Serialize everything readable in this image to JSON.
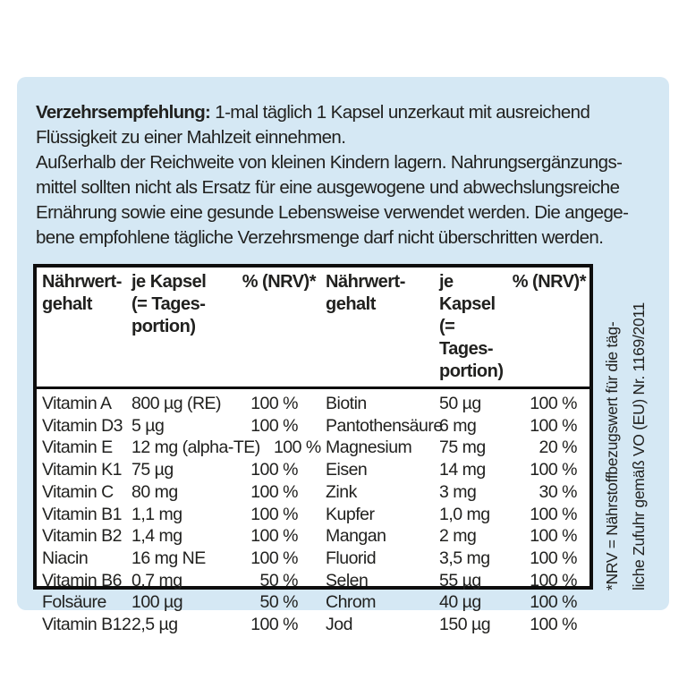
{
  "label": {
    "background_color": "#d5e8f4",
    "text_color": "#21211f",
    "border_color": "#0d0d0d"
  },
  "recommendation": {
    "heading": "Verzehrsempfehlung:",
    "line1_rest": " 1-mal täglich 1 Kapsel unzerkaut mit ausreichend",
    "lines": [
      "Flüssigkeit zu einer Mahlzeit einnehmen.",
      "Außerhalb der Reichweite von kleinen Kindern lagern. Nahrungsergänzungs-",
      "mittel sollten nicht als Ersatz für eine ausgewogene und abwechslungsreiche",
      "Ernährung sowie eine gesunde Lebensweise verwendet werden. Die angege-",
      "bene empfohlene tägliche Verzehrsmenge darf nicht überschritten werden."
    ]
  },
  "table": {
    "headers": {
      "name": "Nährwert-\ngehalt",
      "amount": "je Kapsel\n(= Tages-\nportion)",
      "nrv": "% (NRV)*"
    },
    "left_rows": [
      {
        "name": "Vitamin A",
        "value": "800 µg (RE)",
        "pct": "100 %"
      },
      {
        "name": "Vitamin D3",
        "value": "5 µg",
        "pct": "100 %"
      },
      {
        "name": "Vitamin E",
        "value": "12 mg (alpha-TE)",
        "pct": "100 %"
      },
      {
        "name": "Vitamin K1",
        "value": "75 µg",
        "pct": "100 %"
      },
      {
        "name": "Vitamin C",
        "value": "80 mg",
        "pct": "100 %"
      },
      {
        "name": "Vitamin B1",
        "value": "1,1 mg",
        "pct": "100 %"
      },
      {
        "name": "Vitamin B2",
        "value": "1,4 mg",
        "pct": "100 %"
      },
      {
        "name": "Niacin",
        "value": "16 mg NE",
        "pct": "100 %"
      },
      {
        "name": "Vitamin B6",
        "value": "0,7 mg",
        "pct": "50 %"
      },
      {
        "name": "Folsäure",
        "value": "100 µg",
        "pct": "50 %"
      },
      {
        "name": "Vitamin B12",
        "value": "2,5 µg",
        "pct": "100 %"
      }
    ],
    "right_rows": [
      {
        "name": "Biotin",
        "value": "50 µg",
        "pct": "100 %"
      },
      {
        "name": "Pantothensäure",
        "value": "6 mg",
        "pct": "100 %"
      },
      {
        "name": "Magnesium",
        "value": "75 mg",
        "pct": "20 %"
      },
      {
        "name": "Eisen",
        "value": "14 mg",
        "pct": "100 %"
      },
      {
        "name": "Zink",
        "value": "3 mg",
        "pct": "30 %"
      },
      {
        "name": "Kupfer",
        "value": "1,0 mg",
        "pct": "100 %"
      },
      {
        "name": "Mangan",
        "value": "2 mg",
        "pct": "100 %"
      },
      {
        "name": "Fluorid",
        "value": "3,5 mg",
        "pct": "100 %"
      },
      {
        "name": "Selen",
        "value": "55 µg",
        "pct": "100 %"
      },
      {
        "name": "Chrom",
        "value": "40 µg",
        "pct": "100 %"
      },
      {
        "name": "Jod",
        "value": "150 µg",
        "pct": "100 %"
      }
    ]
  },
  "footnote": {
    "lines": [
      "*NRV = Nährstoffbezugswert für die täg-",
      "liche Zufuhr gemäß VO (EU) Nr. 1169/2011"
    ]
  }
}
